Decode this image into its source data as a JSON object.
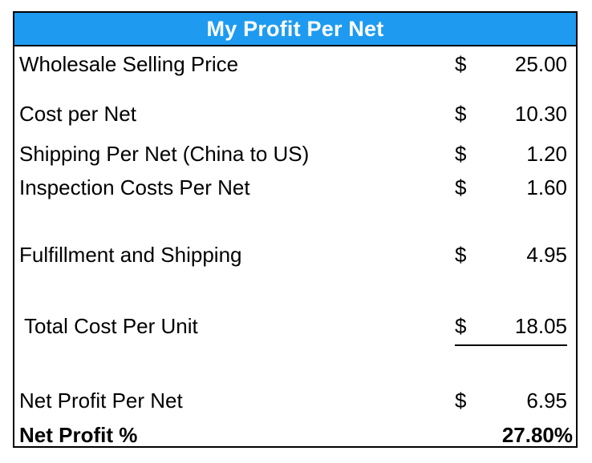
{
  "title": "My Profit Per Net",
  "colors": {
    "header_background": "#1e9bf0",
    "header_text": "#ffffff",
    "border": "#000000"
  },
  "rows": [
    {
      "label": "Wholesale Selling Price",
      "currency": "$",
      "amount": "25.00"
    },
    {
      "label": "Cost per Net",
      "currency": "$",
      "amount": "10.30"
    },
    {
      "label": "Shipping Per Net (China to US)",
      "currency": "$",
      "amount": "1.20"
    },
    {
      "label": "Inspection Costs Per Net",
      "currency": "$",
      "amount": "1.60"
    },
    {
      "label": "Fulfillment and Shipping",
      "currency": "$",
      "amount": "4.95"
    },
    {
      "label": "Total Cost Per Unit",
      "currency": "$",
      "amount": "18.05"
    },
    {
      "label": "Net Profit Per Net",
      "currency": "$",
      "amount": "6.95"
    },
    {
      "label": "Net Profit %",
      "amount": "27.80%"
    }
  ]
}
